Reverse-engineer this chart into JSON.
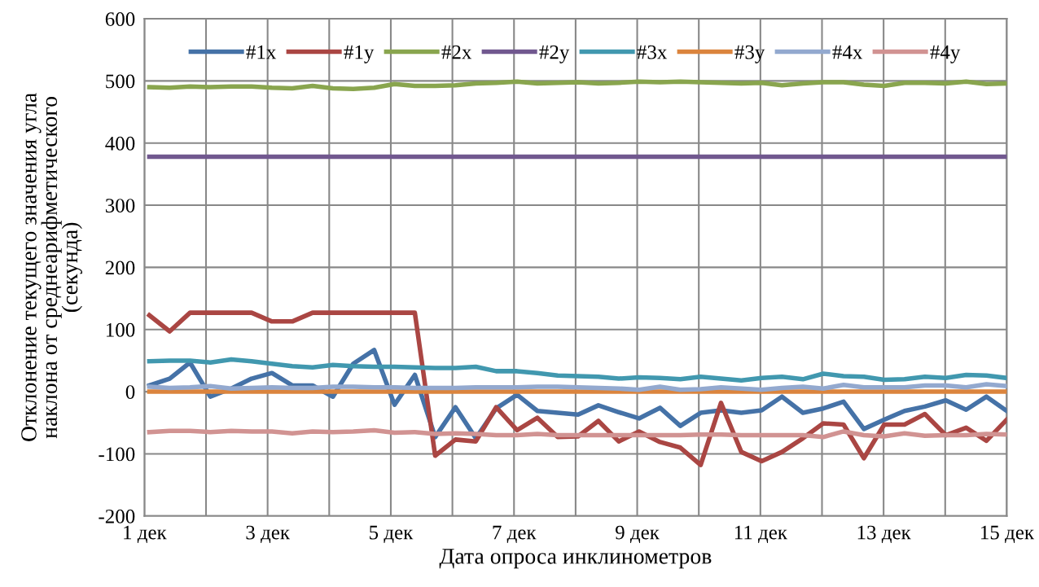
{
  "chart_data": {
    "type": "line",
    "xlabel": "Дата опроса инклинометров",
    "ylabel": "Отклонение текущего значения угла\nнаклона от среднеарифметического\n(секунда)",
    "x": [
      1.08,
      1.41,
      1.74,
      2.07,
      2.41,
      2.74,
      3.07,
      3.4,
      3.73,
      4.06,
      4.39,
      4.73,
      5.06,
      5.39,
      5.72,
      6.05,
      6.38,
      6.71,
      7.05,
      7.38,
      7.71,
      8.04,
      8.37,
      8.7,
      9.03,
      9.37,
      9.7,
      10.03,
      10.36,
      10.69,
      11.02,
      11.35,
      11.69,
      12.02,
      12.35,
      12.68,
      13.01,
      13.34,
      13.67,
      14.01,
      14.34,
      14.67,
      15.0
    ],
    "series": [
      {
        "name": "#1x",
        "color": "#4572a7",
        "values": [
          10,
          21,
          47,
          -8,
          5,
          21,
          30,
          10,
          10,
          -8,
          45,
          67,
          -21,
          27,
          -73,
          -25,
          -75,
          -27,
          -5,
          -31,
          -34,
          -37,
          -22,
          -33,
          -43,
          -26,
          -55,
          -34,
          -30,
          -34,
          -30,
          -8,
          -34,
          -27,
          -16,
          -60,
          -45,
          -31,
          -24,
          -14,
          -29,
          -8,
          -31
        ]
      },
      {
        "name": "#1y",
        "color": "#aa4643",
        "values": [
          123,
          97,
          127,
          127,
          127,
          127,
          113,
          113,
          127,
          127,
          127,
          127,
          127,
          127,
          -103,
          -77,
          -80,
          -25,
          -62,
          -42,
          -73,
          -72,
          -47,
          -80,
          -64,
          -81,
          -90,
          -118,
          -18,
          -97,
          -112,
          -97,
          -75,
          -51,
          -53,
          -107,
          -53,
          -53,
          -36,
          -70,
          -58,
          -79,
          -45
        ]
      },
      {
        "name": "#2x",
        "color": "#89a54e",
        "values": [
          490,
          489,
          491,
          490,
          491,
          491,
          489,
          488,
          492,
          488,
          487,
          489,
          495,
          492,
          492,
          493,
          496,
          497,
          499,
          496,
          497,
          498,
          496,
          497,
          499,
          498,
          499,
          498,
          497,
          496,
          497,
          493,
          496,
          498,
          498,
          494,
          492,
          497,
          497,
          496,
          499,
          495,
          496
        ]
      },
      {
        "name": "#2y",
        "color": "#71588f",
        "values": [
          378,
          378,
          378,
          378,
          378,
          378,
          378,
          378,
          378,
          378,
          378,
          378,
          378,
          378,
          378,
          378,
          378,
          378,
          378,
          378,
          378,
          378,
          378,
          378,
          378,
          378,
          378,
          378,
          378,
          378,
          378,
          378,
          378,
          378,
          378,
          378,
          378,
          378,
          378,
          378,
          378,
          378,
          378
        ]
      },
      {
        "name": "#3x",
        "color": "#4198af",
        "values": [
          49,
          50,
          50,
          47,
          52,
          49,
          45,
          41,
          39,
          43,
          41,
          40,
          40,
          39,
          38,
          38,
          40,
          33,
          33,
          30,
          26,
          25,
          24,
          21,
          23,
          22,
          20,
          24,
          21,
          18,
          22,
          24,
          20,
          29,
          25,
          24,
          19,
          20,
          24,
          22,
          27,
          26,
          22
        ]
      },
      {
        "name": "#3y",
        "color": "#db843d",
        "values": [
          0,
          0,
          0,
          0,
          0,
          0,
          0,
          0,
          0,
          0,
          0,
          0,
          0,
          0,
          0,
          0,
          0,
          0,
          0,
          0,
          0,
          0,
          0,
          0,
          0,
          0,
          0,
          0,
          0,
          0,
          0,
          0,
          0,
          0,
          0,
          0,
          0,
          0,
          0,
          0,
          0,
          0,
          0
        ]
      },
      {
        "name": "#4x",
        "color": "#93a9cf",
        "values": [
          8,
          6,
          7,
          9,
          5,
          6,
          7,
          6,
          6,
          8,
          8,
          7,
          7,
          6,
          6,
          6,
          7,
          7,
          7,
          8,
          8,
          7,
          6,
          5,
          3,
          8,
          3,
          4,
          7,
          5,
          3,
          6,
          8,
          5,
          11,
          7,
          7,
          7,
          10,
          10,
          7,
          12,
          9
        ]
      },
      {
        "name": "#4y",
        "color": "#d19392",
        "values": [
          -65,
          -63,
          -63,
          -65,
          -63,
          -64,
          -64,
          -67,
          -64,
          -65,
          -64,
          -62,
          -66,
          -65,
          -68,
          -67,
          -68,
          -70,
          -70,
          -68,
          -70,
          -70,
          -70,
          -70,
          -70,
          -70,
          -70,
          -69,
          -69,
          -70,
          -70,
          -70,
          -70,
          -73,
          -64,
          -70,
          -72,
          -67,
          -71,
          -70,
          -70,
          -68,
          -69
        ]
      }
    ],
    "xlim": [
      1,
      15
    ],
    "xticks": [
      {
        "value": 1,
        "label": "1 дек"
      },
      {
        "value": 2,
        "label": null
      },
      {
        "value": 3,
        "label": "3 дек"
      },
      {
        "value": 4,
        "label": null
      },
      {
        "value": 5,
        "label": "5 дек"
      },
      {
        "value": 6,
        "label": null
      },
      {
        "value": 7,
        "label": "7 дек"
      },
      {
        "value": 8,
        "label": null
      },
      {
        "value": 9,
        "label": "9 дек"
      },
      {
        "value": 10,
        "label": null
      },
      {
        "value": 11,
        "label": "11 дек"
      },
      {
        "value": 12,
        "label": null
      },
      {
        "value": 13,
        "label": "13 дек"
      },
      {
        "value": 14,
        "label": null
      },
      {
        "value": 15,
        "label": "15 дек"
      }
    ],
    "ylim": [
      -200,
      600
    ],
    "yticks": [
      -200,
      -100,
      0,
      100,
      200,
      300,
      400,
      500,
      600
    ],
    "grid": true,
    "legend": "top",
    "marker": "none",
    "line_style": "solid"
  }
}
